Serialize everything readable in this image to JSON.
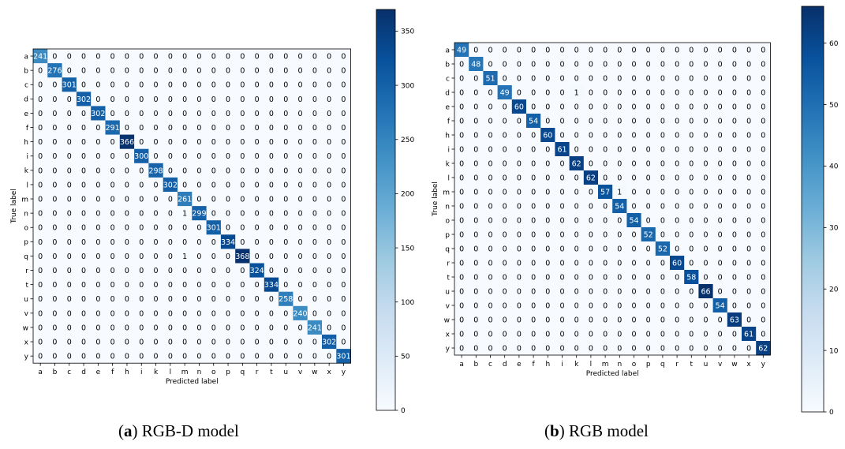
{
  "chart_data": [
    {
      "type": "heatmap",
      "panel_letter": "a",
      "panel_title": "RGB-D model",
      "xlabel": "Predicted label",
      "ylabel": "True label",
      "labels": [
        "a",
        "b",
        "c",
        "d",
        "e",
        "f",
        "h",
        "i",
        "k",
        "l",
        "m",
        "n",
        "o",
        "p",
        "q",
        "r",
        "t",
        "u",
        "v",
        "w",
        "x",
        "y"
      ],
      "diagonal": [
        241,
        276,
        301,
        302,
        302,
        291,
        366,
        300,
        298,
        302,
        261,
        299,
        301,
        334,
        368,
        324,
        334,
        258,
        240,
        241,
        302,
        301
      ],
      "off_diagonal": [
        {
          "row": "n",
          "col": "m",
          "value": 1
        },
        {
          "row": "q",
          "col": "m",
          "value": 1
        }
      ],
      "colorbar": {
        "min": 0,
        "max": 370,
        "ticks": [
          0,
          50,
          100,
          150,
          200,
          250,
          300,
          350
        ]
      },
      "colormap": "Blues",
      "text_color_light": "#ffffff",
      "text_color_dark": "#000000"
    },
    {
      "type": "heatmap",
      "panel_letter": "b",
      "panel_title": "RGB model",
      "xlabel": "Predicted label",
      "ylabel": "True label",
      "labels": [
        "a",
        "b",
        "c",
        "d",
        "e",
        "f",
        "h",
        "i",
        "k",
        "l",
        "m",
        "n",
        "o",
        "p",
        "q",
        "r",
        "t",
        "u",
        "v",
        "w",
        "x",
        "y"
      ],
      "diagonal": [
        49,
        48,
        51,
        49,
        60,
        54,
        60,
        61,
        62,
        62,
        57,
        54,
        54,
        52,
        52,
        60,
        58,
        66,
        54,
        63,
        61,
        62
      ],
      "off_diagonal": [
        {
          "row": "d",
          "col": "k",
          "value": 1
        },
        {
          "row": "m",
          "col": "n",
          "value": 1
        }
      ],
      "colorbar": {
        "min": 0,
        "max": 66,
        "ticks": [
          0,
          10,
          20,
          30,
          40,
          50,
          60
        ]
      },
      "colormap": "Blues",
      "text_color_light": "#ffffff",
      "text_color_dark": "#000000"
    }
  ],
  "captions": [
    {
      "letter_display": "(a)",
      "text": " RGB-D model"
    },
    {
      "letter_display": "(b)",
      "text": " RGB model"
    }
  ]
}
